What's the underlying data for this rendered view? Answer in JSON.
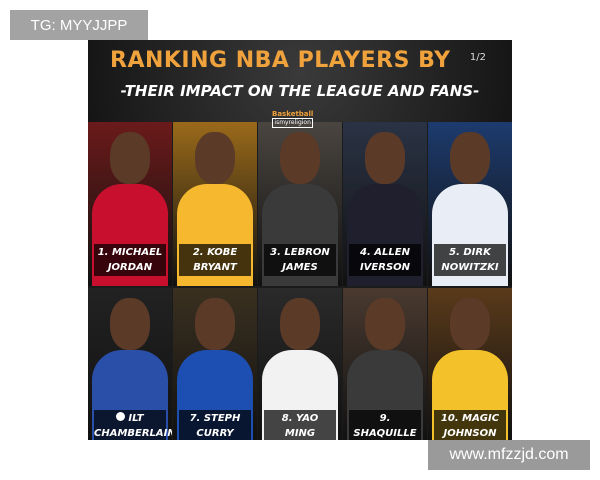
{
  "watermarks": {
    "top_left": "TG: MYYJJPP",
    "bottom_right": "www.mfzzjd.com"
  },
  "poster": {
    "title": "RANKING NBA PLAYERS BY",
    "page_indicator": "1/2",
    "subtitle": "-THEIR IMPACT ON THE LEAGUE AND FANS-",
    "logo": {
      "line1": "Basketball",
      "line2": "ismyreligion"
    },
    "players": [
      {
        "line1": "1. MICHAEL",
        "line2": "JORDAN",
        "jersey": "#c8102e",
        "bg": "#6b1a1a"
      },
      {
        "line1": "2. KOBE",
        "line2": "BRYANT",
        "jersey": "#f5b82e",
        "bg": "#9a6a1a"
      },
      {
        "line1": "3. LEBRON",
        "line2": "JAMES",
        "jersey": "#3a3a3a",
        "bg": "#4a4540"
      },
      {
        "line1": "4. ALLEN",
        "line2": "IVERSON",
        "jersey": "#1f1f2e",
        "bg": "#2a3345"
      },
      {
        "line1": "5. DIRK",
        "line2": "NOWITZKI",
        "jersey": "#e9edf5",
        "bg": "#1d3b6e"
      },
      {
        "line1": "ILT",
        "line2": "CHAMBERLAIN",
        "jersey": "#2a4fa8",
        "bg": "#222"
      },
      {
        "line1": "7. STEPH",
        "line2": "CURRY",
        "jersey": "#1d4fb3",
        "bg": "#3a3020"
      },
      {
        "line1": "8. YAO",
        "line2": "MING",
        "jersey": "#f2f2f2",
        "bg": "#2a2a2a"
      },
      {
        "line1": "9. SHAQUILLE",
        "line2": "O'NEAL",
        "jersey": "#3a3a3a",
        "bg": "#4a3a30"
      },
      {
        "line1": "10. MAGIC",
        "line2": "JOHNSON",
        "jersey": "#f3c22b",
        "bg": "#5a3a1a"
      }
    ]
  }
}
